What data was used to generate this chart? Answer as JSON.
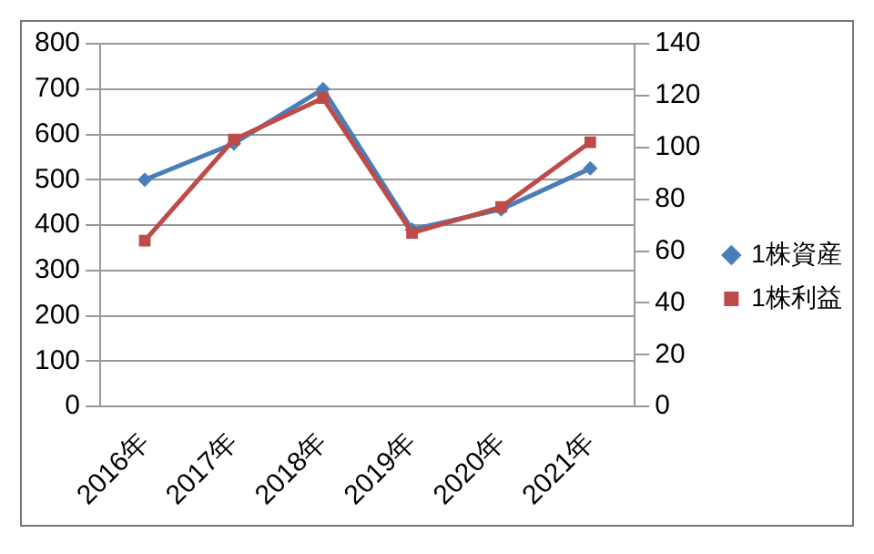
{
  "chart_data": {
    "type": "line",
    "categories": [
      "2016年",
      "2017年",
      "2018年",
      "2019年",
      "2020年",
      "2021年"
    ],
    "series": [
      {
        "name": "1株資産",
        "color": "#4a7ebb",
        "marker": "diamond",
        "values": [
          500,
          580,
          700,
          390,
          435,
          525
        ]
      },
      {
        "name": "1株利益",
        "color": "#be4b48",
        "marker": "square",
        "axis": "y2",
        "values": [
          64,
          103,
          119,
          67,
          77,
          102
        ]
      }
    ],
    "ylim": [
      0,
      800
    ],
    "yticks": [
      0,
      100,
      200,
      300,
      400,
      500,
      600,
      700,
      800
    ],
    "y2lim": [
      0,
      140
    ],
    "y2ticks": [
      0,
      20,
      40,
      60,
      80,
      100,
      120,
      140
    ],
    "grid": "y",
    "legend": "right",
    "line_style": "solid"
  }
}
